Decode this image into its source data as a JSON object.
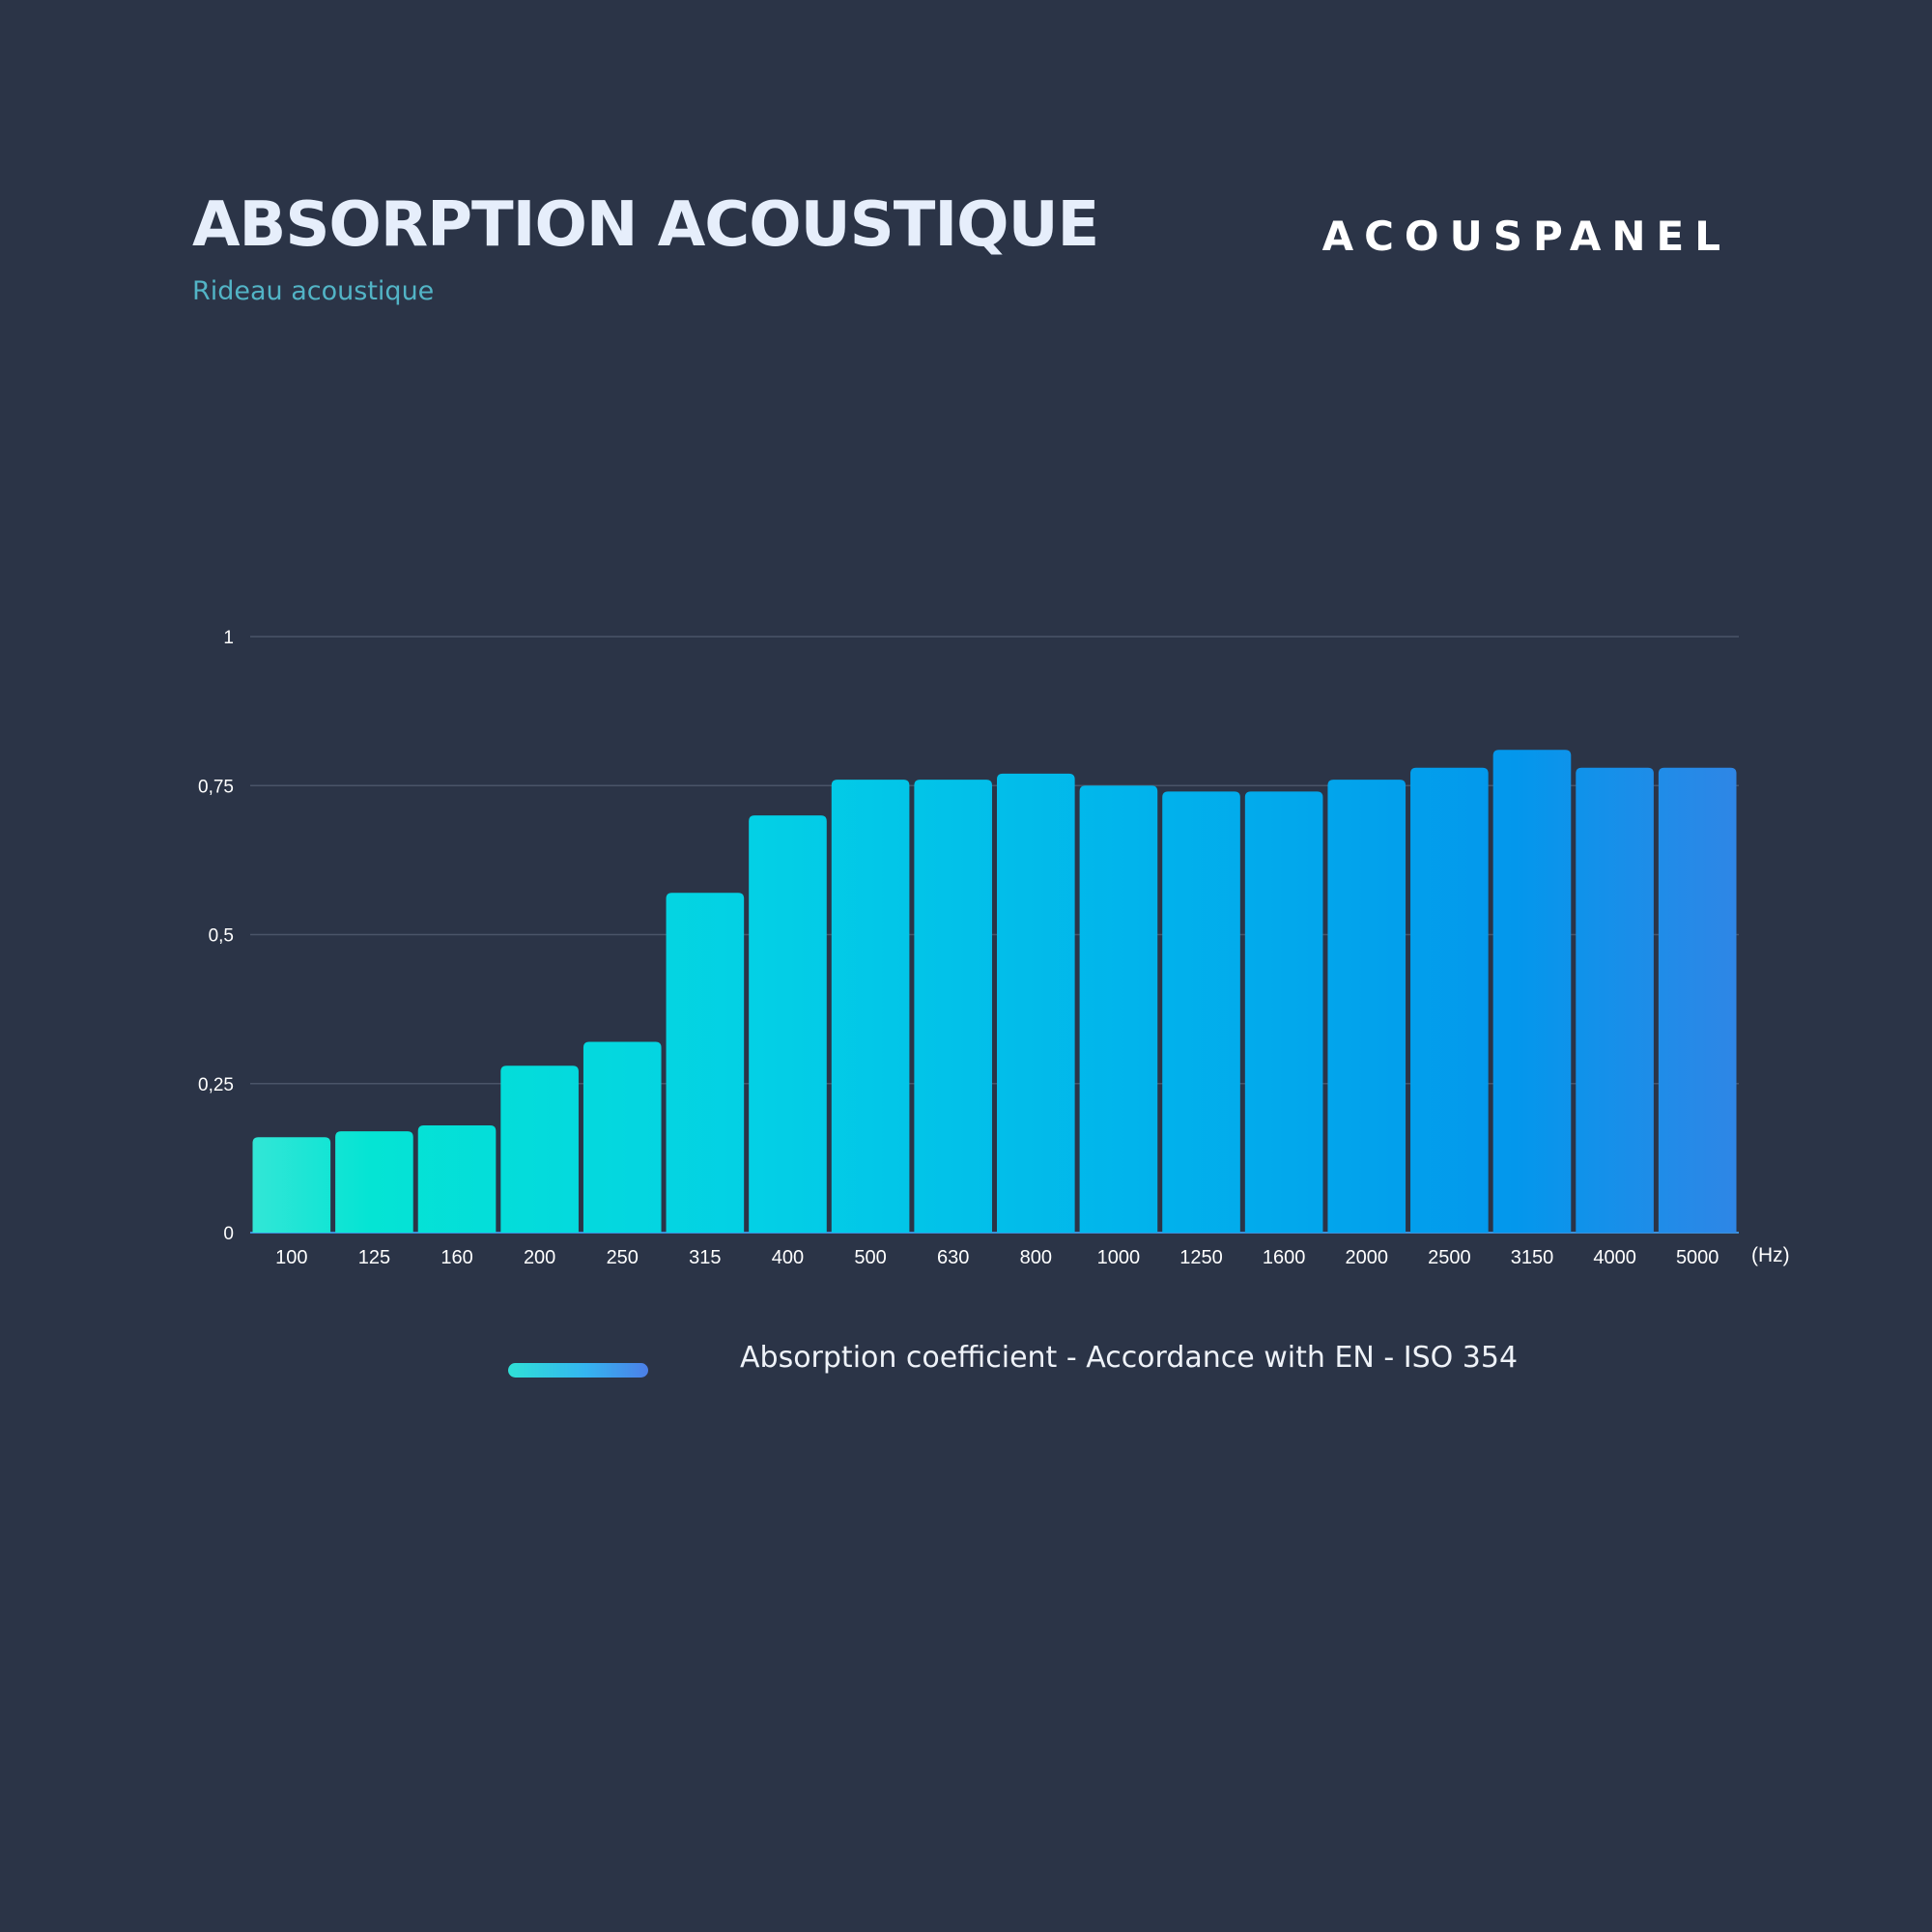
{
  "header": {
    "title": "ABSORPTION ACOUSTIQUE",
    "subtitle": "Rideau acoustique",
    "brand": "ACOUSPANEL"
  },
  "colors": {
    "background": "#2b3447",
    "title": "#e6eefb",
    "subtitle": "#52b4c6",
    "bar_start": "#2ee3d5",
    "bar_end": "#2e86e8",
    "gridline": "#4a5468"
  },
  "chart_data": {
    "type": "bar",
    "title": "",
    "xlabel": "",
    "ylabel": "",
    "x_unit": "(Hz)",
    "categories": [
      "100",
      "125",
      "160",
      "200",
      "250",
      "315",
      "400",
      "500",
      "630",
      "800",
      "1000",
      "1250",
      "1600",
      "2000",
      "2500",
      "3150",
      "4000",
      "5000"
    ],
    "series": [
      {
        "name": "Absorption coefficient - Accordance with EN - ISO 354",
        "values": [
          0.16,
          0.17,
          0.18,
          0.28,
          0.32,
          0.57,
          0.7,
          0.76,
          0.76,
          0.77,
          0.75,
          0.74,
          0.74,
          0.76,
          0.78,
          0.81,
          0.78,
          0.78
        ]
      }
    ],
    "ylim": [
      0,
      1
    ],
    "yticks": [
      0,
      0.25,
      0.5,
      0.75,
      1
    ],
    "ytick_labels": [
      "0",
      "0,25",
      "0,5",
      "0,75",
      "1"
    ],
    "grid": true,
    "legend_position": "bottom-center"
  },
  "legend": {
    "label": "Absorption coefficient - Accordance with EN - ISO 354"
  }
}
